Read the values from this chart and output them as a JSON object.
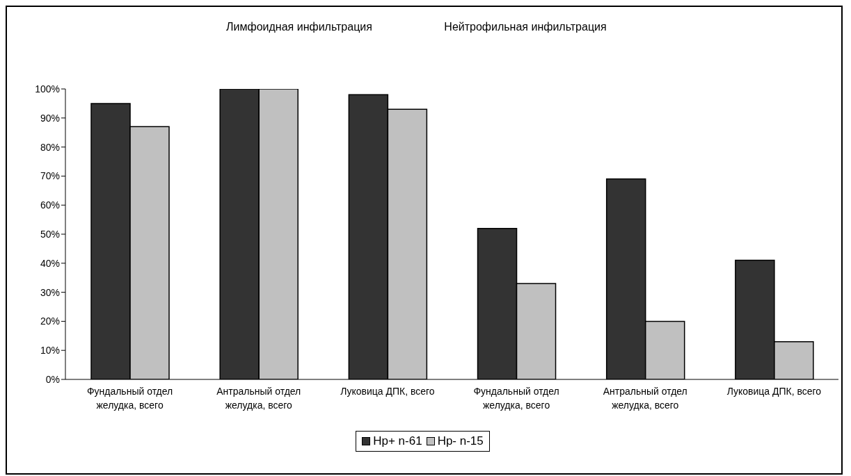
{
  "chart_data": {
    "type": "bar",
    "annotations": [
      "Лимфоидная инфильтрация",
      "Нейтрофильная инфильтрация"
    ],
    "categories": [
      "Фундальный отдел желудка, всего",
      "Антральный отдел желудка, всего",
      "Луковица ДПК, всего",
      "Фундальный отдел желудка, всего",
      "Антральный отдел желудка, всего",
      "Луковица ДПК, всего"
    ],
    "series": [
      {
        "name": "Hp+ n-61",
        "color": "#333333",
        "values": [
          95,
          100,
          98,
          52,
          69,
          41
        ]
      },
      {
        "name": "Hp- n-15",
        "color": "#c0c0c0",
        "values": [
          87,
          100,
          93,
          33,
          20,
          13
        ]
      }
    ],
    "ylim": [
      0,
      100
    ],
    "yticks": [
      {
        "value": 0,
        "label": "0%"
      },
      {
        "value": 10,
        "label": "10%"
      },
      {
        "value": 20,
        "label": "20%"
      },
      {
        "value": 30,
        "label": "30%"
      },
      {
        "value": 40,
        "label": "40%"
      },
      {
        "value": 50,
        "label": "50%"
      },
      {
        "value": 60,
        "label": "60%"
      },
      {
        "value": 70,
        "label": "70%"
      },
      {
        "value": 80,
        "label": "80%"
      },
      {
        "value": 90,
        "label": "90%"
      },
      {
        "value": 100,
        "label": "100%"
      }
    ],
    "grid": false,
    "legend": "bottom"
  }
}
